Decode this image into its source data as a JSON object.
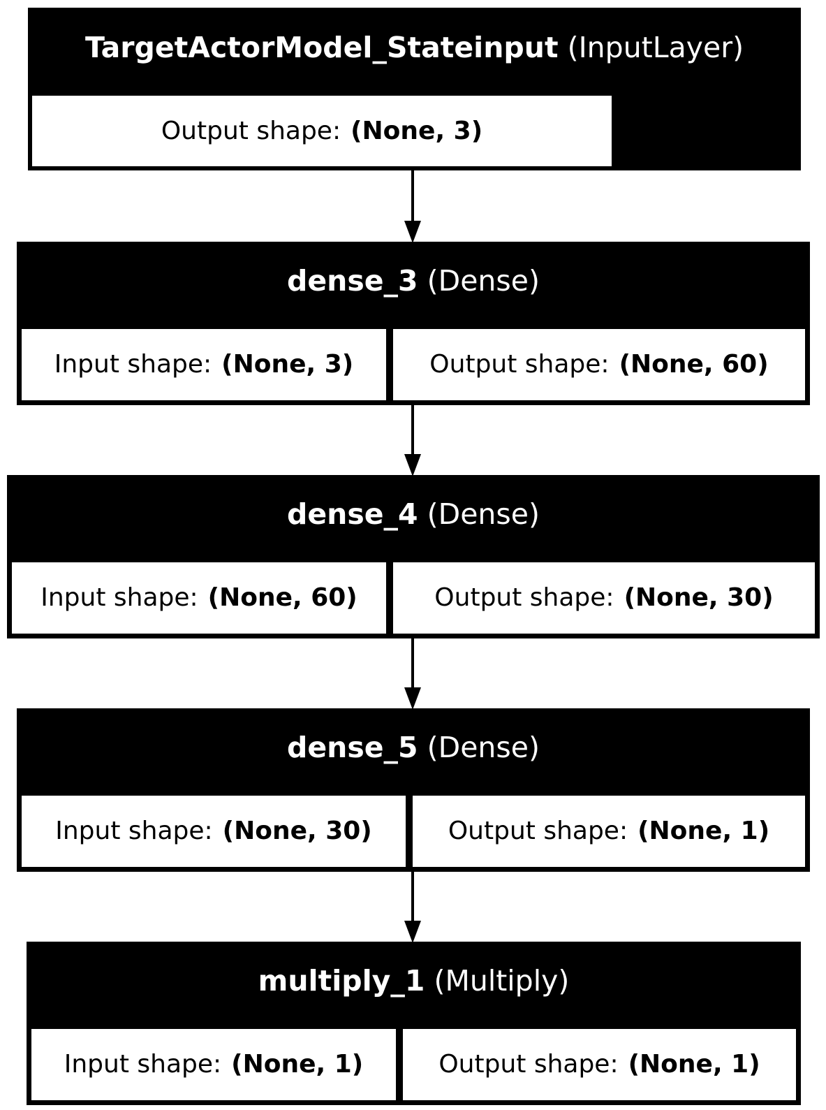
{
  "layers": [
    {
      "name": "TargetActorModel_Stateinput",
      "type": "(InputLayer)",
      "output_label": "Output shape:",
      "output_shape": "(None, 3)"
    },
    {
      "name": "dense_3",
      "type": "(Dense)",
      "input_label": "Input shape:",
      "input_shape": "(None, 3)",
      "output_label": "Output shape:",
      "output_shape": "(None, 60)"
    },
    {
      "name": "dense_4",
      "type": "(Dense)",
      "input_label": "Input shape:",
      "input_shape": "(None, 60)",
      "output_label": "Output shape:",
      "output_shape": "(None, 30)"
    },
    {
      "name": "dense_5",
      "type": "(Dense)",
      "input_label": "Input shape:",
      "input_shape": "(None, 30)",
      "output_label": "Output shape:",
      "output_shape": "(None, 1)"
    },
    {
      "name": "multiply_1",
      "type": "(Multiply)",
      "input_label": "Input shape:",
      "input_shape": "(None, 1)",
      "output_label": "Output shape:",
      "output_shape": "(None, 1)"
    }
  ],
  "edges": [
    [
      0,
      1
    ],
    [
      1,
      2
    ],
    [
      2,
      3
    ],
    [
      3,
      4
    ]
  ]
}
